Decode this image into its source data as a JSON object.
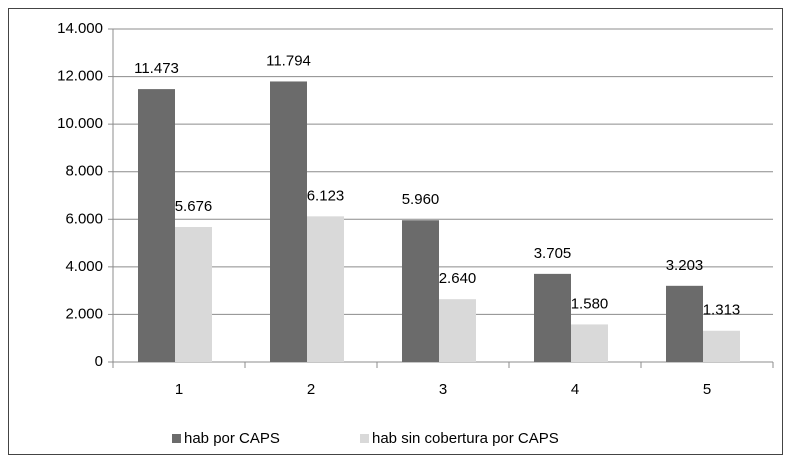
{
  "chart_data": {
    "type": "bar",
    "categories": [
      "1",
      "2",
      "3",
      "4",
      "5"
    ],
    "series": [
      {
        "name": "hab por CAPS",
        "color": "#6b6b6b",
        "values": [
          11473,
          11794,
          5960,
          3705,
          3203
        ],
        "value_labels": [
          "11.473",
          "11.794",
          "5.960",
          "3.705",
          "3.203"
        ]
      },
      {
        "name": "hab sin cobertura por CAPS",
        "color": "#d9d9d9",
        "values": [
          5676,
          6123,
          2640,
          1580,
          1313
        ],
        "value_labels": [
          "5.676",
          "6.123",
          "2.640",
          "1.580",
          "1.313"
        ]
      }
    ],
    "ylim": [
      0,
      14000
    ],
    "yticks": [
      0,
      {
        "value": 2000,
        "label": "2.000"
      },
      {
        "value": 4000,
        "label": "4.000"
      },
      {
        "value": 6000,
        "label": "6.000"
      },
      {
        "value": 8000,
        "label": "8.000"
      },
      {
        "value": 10000,
        "label": "10.000"
      },
      {
        "value": 12000,
        "label": "12.000"
      },
      {
        "value": 14000,
        "label": "14.000"
      }
    ],
    "grid": true,
    "legend": "bottom"
  }
}
